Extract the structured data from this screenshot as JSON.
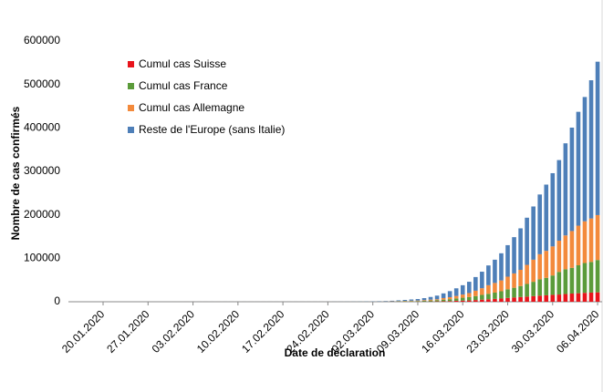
{
  "chart_data": {
    "type": "stacked-bar",
    "y_label": "Nombre de cas confirmés",
    "x_label": "Date de déclaration",
    "categories": [
      "20.01.2020",
      null,
      null,
      null,
      null,
      null,
      null,
      "27.01.2020",
      null,
      null,
      null,
      null,
      null,
      null,
      "03.02.2020",
      null,
      null,
      null,
      null,
      null,
      null,
      "10.02.2020",
      null,
      null,
      null,
      null,
      null,
      null,
      "17.02.2020",
      null,
      null,
      null,
      null,
      null,
      null,
      "24.02.2020",
      null,
      null,
      null,
      null,
      null,
      null,
      "02.03.2020",
      null,
      null,
      null,
      null,
      null,
      null,
      "09.03.2020",
      null,
      null,
      null,
      null,
      null,
      null,
      "16.03.2020",
      null,
      null,
      null,
      null,
      null,
      null,
      "23.03.2020",
      null,
      null,
      null,
      null,
      null,
      null,
      "30.03.2020",
      null,
      null,
      null,
      null,
      null,
      null,
      "06.04.2020"
    ],
    "series": [
      {
        "name": "Cumul cas Suisse",
        "color": "#e8141b",
        "values": [
          0,
          0,
          0,
          0,
          0,
          0,
          0,
          0,
          0,
          0,
          0,
          0,
          0,
          0,
          0,
          0,
          0,
          0,
          0,
          0,
          0,
          0,
          0,
          0,
          0,
          0,
          0,
          0,
          0,
          0,
          0,
          0,
          0,
          0,
          0,
          0,
          1,
          1,
          8,
          15,
          18,
          24,
          42,
          56,
          90,
          114,
          214,
          268,
          337,
          374,
          491,
          652,
          858,
          1125,
          1359,
          2200,
          2650,
          3010,
          3888,
          4840,
          5588,
          6575,
          7474,
          8795,
          9877,
          10897,
          11811,
          12928,
          14076,
          14829,
          15922,
          16605,
          17768,
          18827,
          19606,
          20505,
          21100,
          21657
        ]
      },
      {
        "name": "Cumul cas France",
        "color": "#5b9b3a",
        "values": [
          0,
          0,
          0,
          0,
          2,
          3,
          3,
          3,
          4,
          5,
          5,
          6,
          6,
          6,
          6,
          6,
          6,
          6,
          6,
          11,
          11,
          11,
          11,
          11,
          11,
          11,
          12,
          12,
          12,
          12,
          12,
          12,
          12,
          12,
          12,
          12,
          14,
          18,
          38,
          57,
          100,
          130,
          191,
          204,
          285,
          377,
          653,
          949,
          1126,
          1209,
          1784,
          2281,
          2876,
          3661,
          4499,
          5423,
          6633,
          7730,
          9134,
          10995,
          12612,
          14459,
          16689,
          19856,
          22302,
          25233,
          29155,
          32964,
          37575,
          40174,
          44550,
          52128,
          56989,
          59105,
          64338,
          68605,
          70478,
          74390
        ]
      },
      {
        "name": "Cumul cas Allemagne",
        "color": "#f38a3c",
        "values": [
          0,
          0,
          0,
          0,
          0,
          0,
          0,
          1,
          4,
          4,
          4,
          5,
          8,
          10,
          12,
          12,
          12,
          12,
          13,
          13,
          14,
          14,
          16,
          16,
          16,
          16,
          16,
          16,
          16,
          16,
          16,
          16,
          16,
          16,
          16,
          16,
          18,
          21,
          26,
          53,
          66,
          130,
          159,
          196,
          262,
          482,
          670,
          799,
          1040,
          1176,
          1457,
          1908,
          2078,
          3675,
          4585,
          5795,
          7272,
          9257,
          12327,
          15320,
          19848,
          22213,
          24873,
          29056,
          32986,
          37323,
          43938,
          50871,
          57695,
          62095,
          66885,
          71808,
          77872,
          84794,
          91159,
          96092,
          100123,
          103374
        ]
      },
      {
        "name": "Reste de l'Europe (sans Italie)",
        "color": "#4e7fb8",
        "values": [
          0,
          0,
          0,
          0,
          0,
          0,
          0,
          0,
          0,
          0,
          0,
          2,
          3,
          4,
          5,
          6,
          8,
          9,
          10,
          12,
          14,
          15,
          16,
          17,
          18,
          19,
          20,
          21,
          22,
          24,
          26,
          28,
          30,
          35,
          40,
          60,
          90,
          130,
          190,
          260,
          350,
          480,
          620,
          800,
          1000,
          1300,
          1700,
          2200,
          2800,
          3500,
          4600,
          6200,
          8300,
          10800,
          14000,
          17500,
          21500,
          26000,
          31500,
          38000,
          45500,
          53500,
          62500,
          72500,
          83500,
          95500,
          108500,
          122500,
          137500,
          152500,
          168500,
          185500,
          212000,
          238000,
          262000,
          286000,
          318000,
          353000
        ]
      }
    ],
    "ylim": [
      0,
      600000
    ],
    "yticks": [
      0,
      100000,
      200000,
      300000,
      400000,
      500000,
      600000
    ],
    "legend": "top-left"
  }
}
